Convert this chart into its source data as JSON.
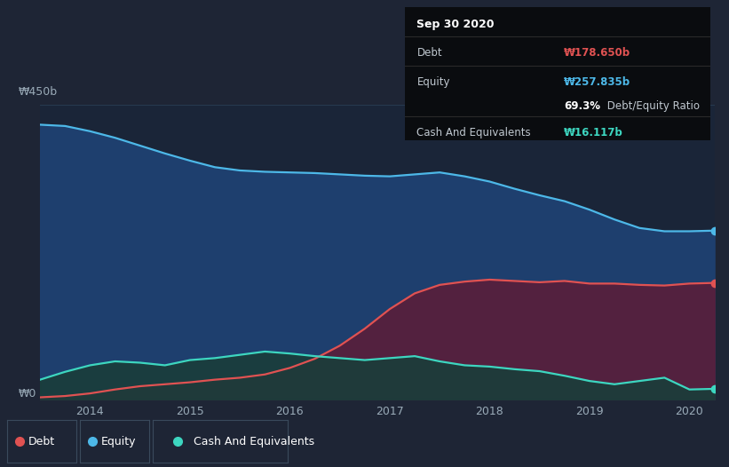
{
  "bg_color": "#1e2535",
  "plot_bg_color": "#1a2538",
  "title": "Sep 30 2020",
  "tooltip_debt_label": "Debt",
  "tooltip_debt_value": "₩178.650b",
  "tooltip_equity_label": "Equity",
  "tooltip_equity_value": "₩257.835b",
  "tooltip_ratio_bold": "69.3%",
  "tooltip_ratio_normal": " Debt/Equity Ratio",
  "tooltip_cash_label": "Cash And Equivalents",
  "tooltip_cash_value": "₩16.117b",
  "ylabel_top": "₩450b",
  "ylabel_bottom": "₩0",
  "x_ticks": [
    "2014",
    "2015",
    "2016",
    "2017",
    "2018",
    "2019",
    "2020"
  ],
  "legend_items": [
    "Debt",
    "Equity",
    "Cash And Equivalents"
  ],
  "legend_colors": [
    "#e05252",
    "#4db8e8",
    "#3dd6c0"
  ],
  "equity_color": "#4db8e8",
  "equity_fill": "#1e3f6e",
  "debt_color": "#e05252",
  "debt_fill": "#5a1e3a",
  "cash_color": "#3dd6c0",
  "cash_fill": "#1a3d3a",
  "grid_color": "#283a50",
  "equity_data": [
    420,
    418,
    410,
    400,
    388,
    376,
    365,
    355,
    350,
    348,
    347,
    346,
    344,
    342,
    341,
    344,
    347,
    341,
    333,
    322,
    312,
    303,
    290,
    275,
    262,
    257,
    257,
    258
  ],
  "debt_data": [
    3,
    5,
    9,
    15,
    20,
    23,
    26,
    30,
    33,
    38,
    48,
    62,
    82,
    108,
    138,
    162,
    175,
    180,
    183,
    181,
    179,
    181,
    177,
    177,
    175,
    174,
    177,
    178
  ],
  "cash_data": [
    30,
    42,
    52,
    58,
    56,
    52,
    60,
    63,
    68,
    73,
    70,
    66,
    63,
    60,
    63,
    66,
    58,
    52,
    50,
    46,
    43,
    36,
    28,
    23,
    28,
    33,
    15,
    16
  ],
  "ylim": [
    0,
    450
  ],
  "n_points": 28
}
